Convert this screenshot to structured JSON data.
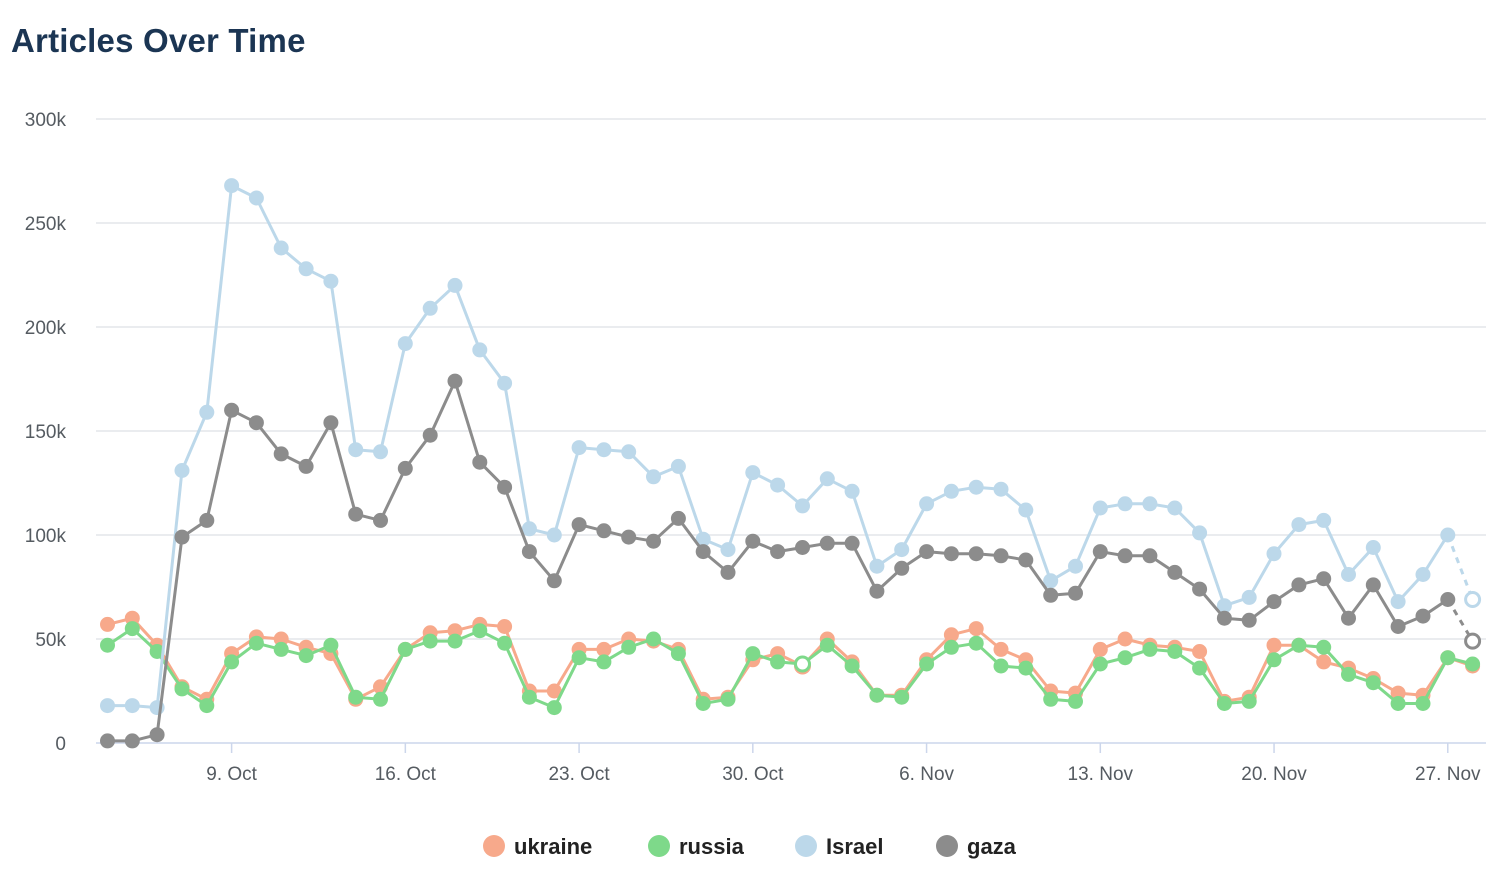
{
  "chart_data": {
    "type": "line",
    "title": "Articles Over Time",
    "xlabel": "",
    "ylabel": "",
    "ylim": [
      0,
      300000
    ],
    "y_ticks": [
      {
        "value": 0,
        "label": "0"
      },
      {
        "value": 50000,
        "label": "50k"
      },
      {
        "value": 100000,
        "label": "100k"
      },
      {
        "value": 150000,
        "label": "150k"
      },
      {
        "value": 200000,
        "label": "200k"
      },
      {
        "value": 250000,
        "label": "250k"
      },
      {
        "value": 300000,
        "label": "300k"
      }
    ],
    "x_ticks": [
      {
        "date": "2023-10-09",
        "label": "9. Oct"
      },
      {
        "date": "2023-10-16",
        "label": "16. Oct"
      },
      {
        "date": "2023-10-23",
        "label": "23. Oct"
      },
      {
        "date": "2023-10-30",
        "label": "30. Oct"
      },
      {
        "date": "2023-11-06",
        "label": "6. Nov"
      },
      {
        "date": "2023-11-13",
        "label": "13. Nov"
      },
      {
        "date": "2023-11-20",
        "label": "20. Nov"
      },
      {
        "date": "2023-11-27",
        "label": "27. Nov"
      }
    ],
    "x_range": [
      "2023-10-03",
      "2023-11-28"
    ],
    "grid": true,
    "legend_position": "bottom-center",
    "x": [
      "2023-10-04",
      "2023-10-05",
      "2023-10-06",
      "2023-10-07",
      "2023-10-08",
      "2023-10-09",
      "2023-10-10",
      "2023-10-11",
      "2023-10-12",
      "2023-10-13",
      "2023-10-14",
      "2023-10-15",
      "2023-10-16",
      "2023-10-17",
      "2023-10-18",
      "2023-10-19",
      "2023-10-20",
      "2023-10-21",
      "2023-10-22",
      "2023-10-23",
      "2023-10-24",
      "2023-10-25",
      "2023-10-26",
      "2023-10-27",
      "2023-10-28",
      "2023-10-29",
      "2023-10-30",
      "2023-10-31",
      "2023-11-01",
      "2023-11-02",
      "2023-11-03",
      "2023-11-04",
      "2023-11-05",
      "2023-11-06",
      "2023-11-07",
      "2023-11-08",
      "2023-11-09",
      "2023-11-10",
      "2023-11-11",
      "2023-11-12",
      "2023-11-13",
      "2023-11-14",
      "2023-11-15",
      "2023-11-16",
      "2023-11-17",
      "2023-11-18",
      "2023-11-19",
      "2023-11-20",
      "2023-11-21",
      "2023-11-22",
      "2023-11-23",
      "2023-11-24",
      "2023-11-25",
      "2023-11-26",
      "2023-11-27",
      "2023-11-28"
    ],
    "series": [
      {
        "name": "ukraine",
        "color": "#f7a98b",
        "hollow_index": 28,
        "values": [
          57000,
          60000,
          47000,
          27000,
          21000,
          43000,
          51000,
          50000,
          46000,
          43000,
          21000,
          27000,
          45000,
          53000,
          54000,
          57000,
          56000,
          25000,
          25000,
          45000,
          45000,
          50000,
          49000,
          45000,
          21000,
          22000,
          40000,
          43000,
          37000,
          50000,
          39000,
          23000,
          23000,
          40000,
          52000,
          55000,
          45000,
          40000,
          25000,
          24000,
          45000,
          50000,
          47000,
          46000,
          44000,
          20000,
          22000,
          47000,
          47000,
          39000,
          36000,
          31000,
          24000,
          23000,
          41000,
          37000
        ]
      },
      {
        "name": "russia",
        "color": "#7ed98a",
        "hollow_index": 28,
        "values": [
          47000,
          55000,
          44000,
          26000,
          18000,
          39000,
          48000,
          45000,
          42000,
          47000,
          22000,
          21000,
          45000,
          49000,
          49000,
          54000,
          48000,
          22000,
          17000,
          41000,
          39000,
          46000,
          50000,
          43000,
          19000,
          21000,
          43000,
          39000,
          38000,
          47000,
          37000,
          23000,
          22000,
          38000,
          46000,
          48000,
          37000,
          36000,
          21000,
          20000,
          38000,
          41000,
          45000,
          44000,
          36000,
          19000,
          20000,
          40000,
          47000,
          46000,
          33000,
          29000,
          19000,
          19000,
          41000,
          38000
        ]
      },
      {
        "name": "Israel",
        "color": "#bcd8ea",
        "hollow_index": 55,
        "values": [
          18000,
          18000,
          17000,
          131000,
          159000,
          268000,
          262000,
          238000,
          228000,
          222000,
          141000,
          140000,
          192000,
          209000,
          220000,
          189000,
          173000,
          103000,
          100000,
          142000,
          141000,
          140000,
          128000,
          133000,
          98000,
          93000,
          130000,
          124000,
          114000,
          127000,
          121000,
          85000,
          93000,
          115000,
          121000,
          123000,
          122000,
          112000,
          78000,
          85000,
          113000,
          115000,
          115000,
          113000,
          101000,
          66000,
          70000,
          91000,
          105000,
          107000,
          81000,
          94000,
          68000,
          81000,
          100000,
          69000
        ]
      },
      {
        "name": "gaza",
        "color": "#8c8c8c",
        "hollow_index": 55,
        "values": [
          1000,
          1000,
          4000,
          99000,
          107000,
          160000,
          154000,
          139000,
          133000,
          154000,
          110000,
          107000,
          132000,
          148000,
          174000,
          135000,
          123000,
          92000,
          78000,
          105000,
          102000,
          99000,
          97000,
          108000,
          92000,
          82000,
          97000,
          92000,
          94000,
          96000,
          96000,
          73000,
          84000,
          92000,
          91000,
          91000,
          90000,
          88000,
          71000,
          72000,
          92000,
          90000,
          90000,
          82000,
          74000,
          60000,
          59000,
          68000,
          76000,
          79000,
          60000,
          76000,
          56000,
          61000,
          69000,
          49000
        ]
      }
    ]
  }
}
